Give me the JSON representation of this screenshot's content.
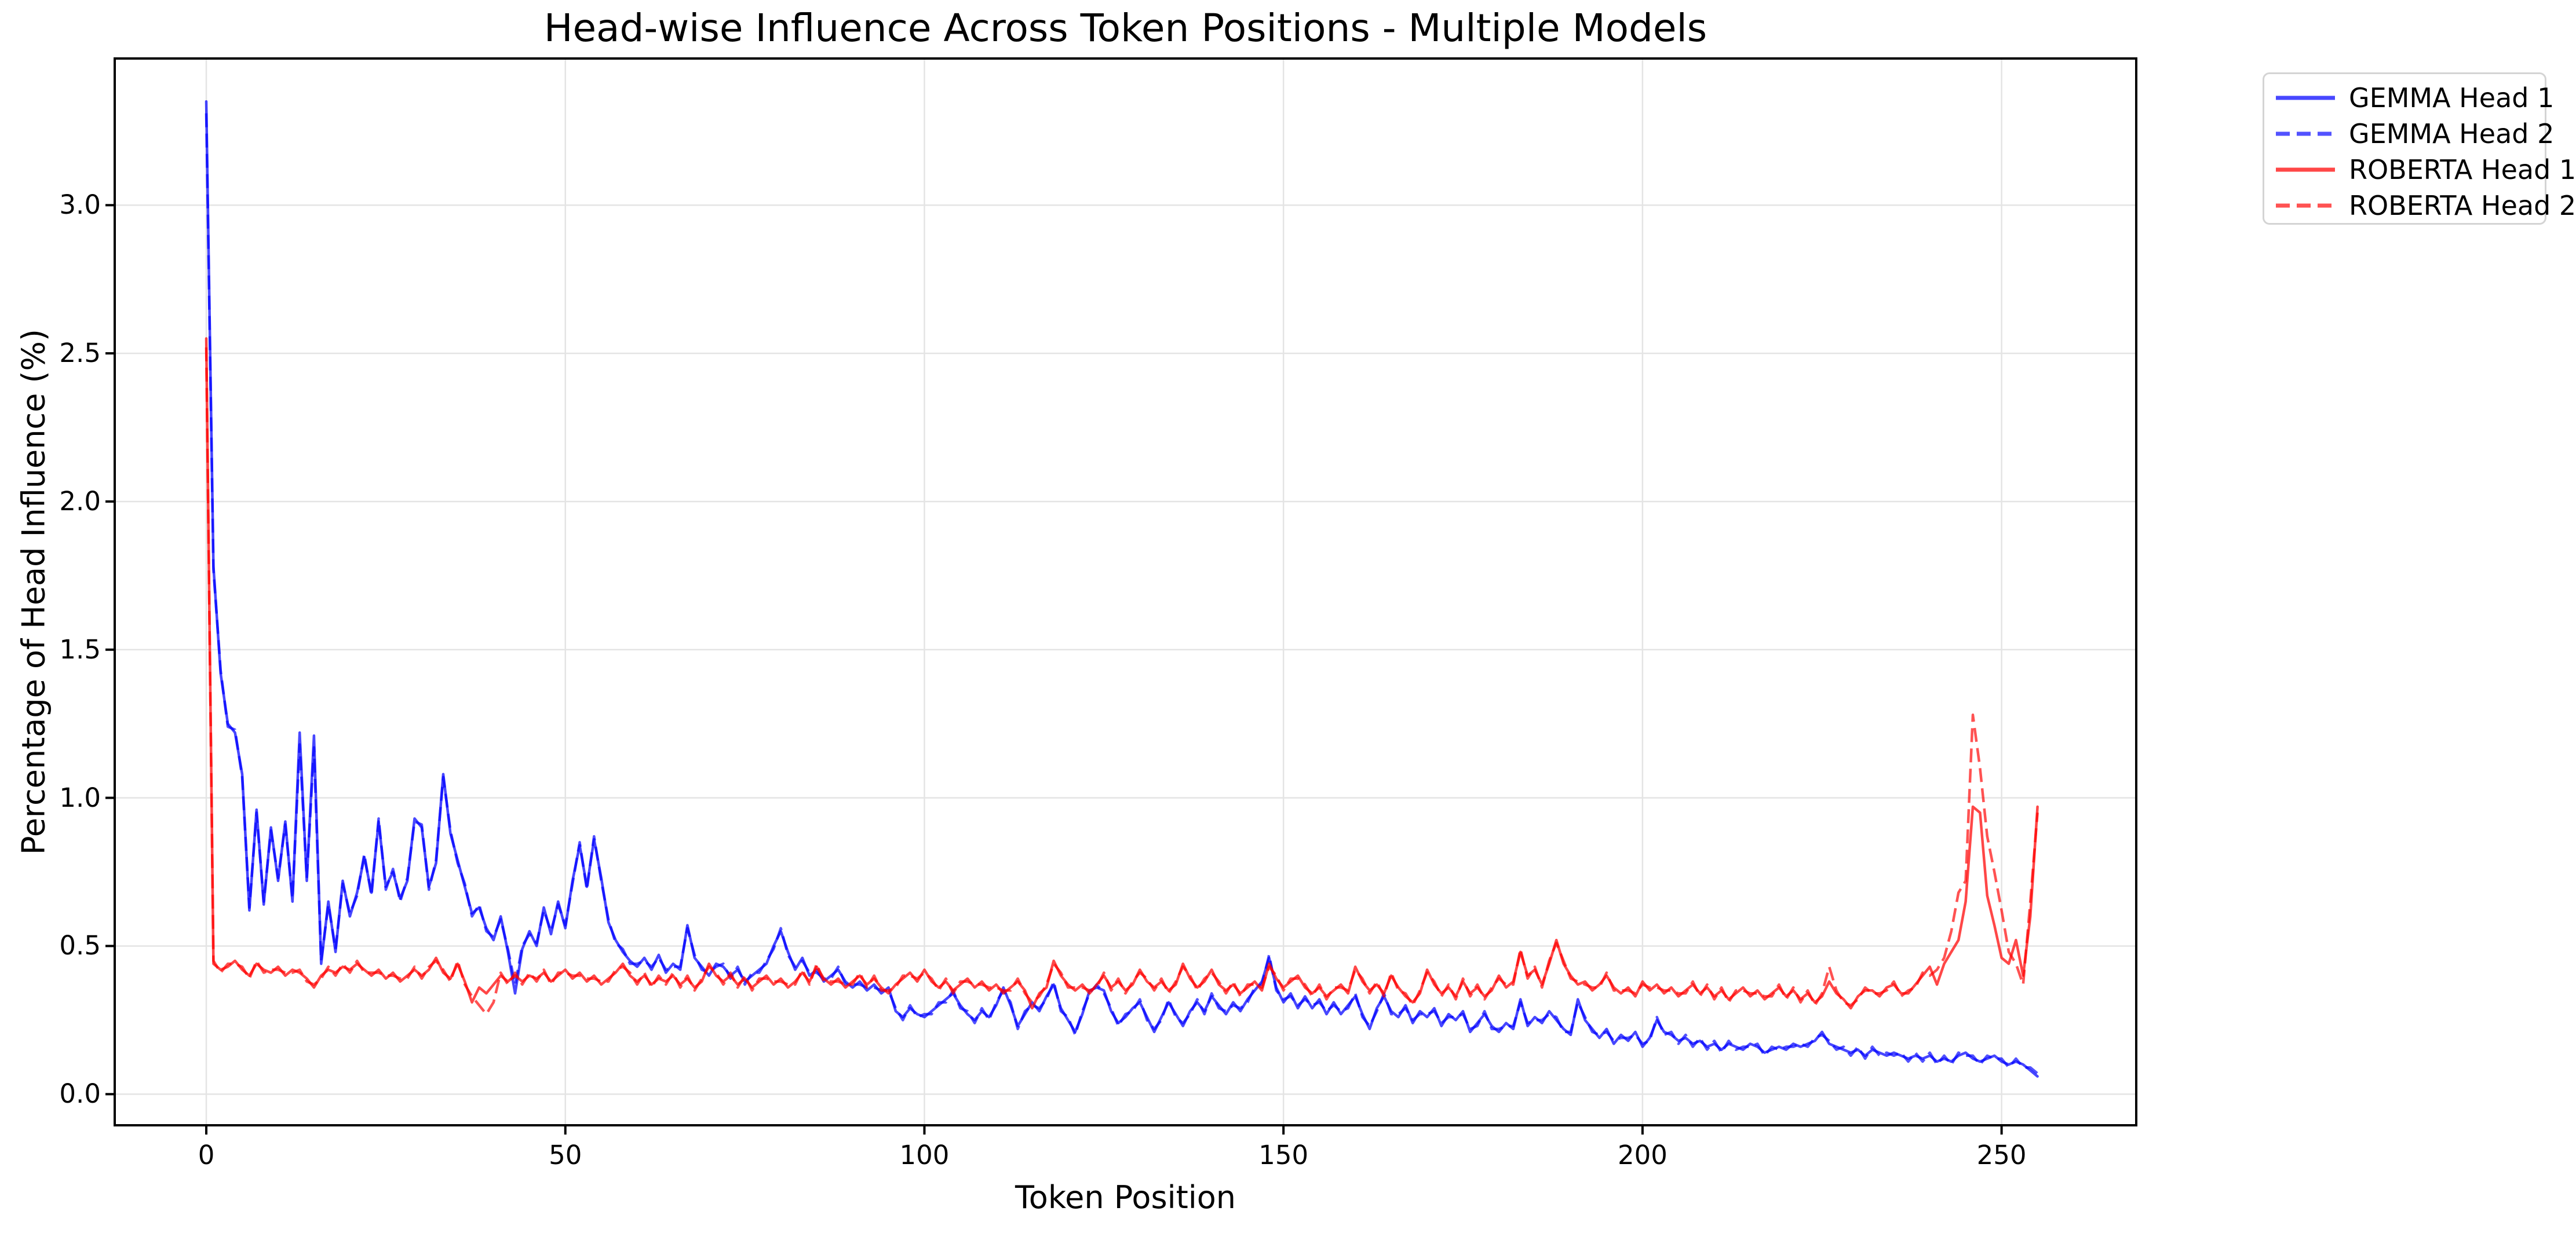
{
  "chart_data": {
    "type": "line",
    "title": "Head-wise Influence Across Token Positions - Multiple Models",
    "xlabel": "Token Position",
    "ylabel": "Percentage of Head Influence (%)",
    "xlim": [
      -12.75,
      268.75
    ],
    "ylim": [
      -0.105,
      3.495
    ],
    "x_ticks": [
      0,
      50,
      100,
      150,
      200,
      250
    ],
    "y_ticks": [
      0.0,
      0.5,
      1.0,
      1.5,
      2.0,
      2.5,
      3.0
    ],
    "grid": true,
    "legend_position": "upper right, outside plot",
    "x_start": 0,
    "x_step": 1,
    "series": [
      {
        "name": "GEMMA Head 1",
        "color": "#0000ff",
        "style": "solid",
        "values": [
          3.35,
          1.78,
          1.42,
          1.25,
          1.22,
          1.08,
          0.62,
          0.96,
          0.64,
          0.9,
          0.72,
          0.92,
          0.65,
          1.22,
          0.72,
          1.21,
          0.44,
          0.65,
          0.48,
          0.72,
          0.6,
          0.68,
          0.8,
          0.68,
          0.92,
          0.7,
          0.75,
          0.66,
          0.72,
          0.93,
          0.9,
          0.7,
          0.78,
          1.08,
          0.88,
          0.79,
          0.7,
          0.61,
          0.63,
          0.56,
          0.52,
          0.6,
          0.48,
          0.34,
          0.49,
          0.55,
          0.5,
          0.63,
          0.54,
          0.65,
          0.56,
          0.72,
          0.84,
          0.7,
          0.86,
          0.73,
          0.58,
          0.52,
          0.48,
          0.45,
          0.43,
          0.46,
          0.42,
          0.47,
          0.41,
          0.44,
          0.42,
          0.57,
          0.46,
          0.43,
          0.4,
          0.44,
          0.43,
          0.4,
          0.42,
          0.38,
          0.4,
          0.42,
          0.44,
          0.5,
          0.55,
          0.48,
          0.42,
          0.46,
          0.4,
          0.42,
          0.38,
          0.4,
          0.42,
          0.38,
          0.36,
          0.38,
          0.35,
          0.37,
          0.34,
          0.36,
          0.28,
          0.26,
          0.29,
          0.27,
          0.26,
          0.28,
          0.3,
          0.32,
          0.34,
          0.3,
          0.27,
          0.25,
          0.28,
          0.26,
          0.3,
          0.36,
          0.3,
          0.23,
          0.27,
          0.31,
          0.28,
          0.33,
          0.37,
          0.29,
          0.25,
          0.21,
          0.27,
          0.35,
          0.36,
          0.35,
          0.28,
          0.24,
          0.26,
          0.29,
          0.31,
          0.26,
          0.21,
          0.26,
          0.31,
          0.27,
          0.23,
          0.28,
          0.31,
          0.28,
          0.33,
          0.3,
          0.27,
          0.31,
          0.28,
          0.32,
          0.35,
          0.38,
          0.46,
          0.36,
          0.31,
          0.34,
          0.29,
          0.33,
          0.29,
          0.32,
          0.27,
          0.31,
          0.27,
          0.3,
          0.33,
          0.27,
          0.22,
          0.29,
          0.33,
          0.28,
          0.26,
          0.3,
          0.24,
          0.28,
          0.26,
          0.29,
          0.23,
          0.27,
          0.25,
          0.28,
          0.21,
          0.24,
          0.27,
          0.23,
          0.21,
          0.24,
          0.22,
          0.32,
          0.23,
          0.26,
          0.24,
          0.28,
          0.25,
          0.22,
          0.2,
          0.32,
          0.25,
          0.22,
          0.19,
          0.22,
          0.17,
          0.2,
          0.18,
          0.21,
          0.16,
          0.19,
          0.25,
          0.21,
          0.2,
          0.18,
          0.19,
          0.17,
          0.18,
          0.16,
          0.17,
          0.15,
          0.17,
          0.16,
          0.15,
          0.17,
          0.16,
          0.14,
          0.15,
          0.16,
          0.15,
          0.17,
          0.16,
          0.17,
          0.18,
          0.21,
          0.17,
          0.16,
          0.15,
          0.14,
          0.15,
          0.13,
          0.15,
          0.14,
          0.13,
          0.14,
          0.13,
          0.12,
          0.13,
          0.12,
          0.13,
          0.11,
          0.12,
          0.11,
          0.13,
          0.14,
          0.12,
          0.11,
          0.12,
          0.13,
          0.11,
          0.1,
          0.11,
          0.1,
          0.08,
          0.06
        ]
      },
      {
        "name": "GEMMA Head 2",
        "color": "#0000ff",
        "style": "dashed",
        "values": [
          3.31,
          1.77,
          1.43,
          1.24,
          1.23,
          1.07,
          0.63,
          0.95,
          0.65,
          0.89,
          0.73,
          0.91,
          0.66,
          1.18,
          0.73,
          1.17,
          0.45,
          0.64,
          0.49,
          0.71,
          0.61,
          0.67,
          0.81,
          0.67,
          0.93,
          0.69,
          0.76,
          0.65,
          0.73,
          0.92,
          0.91,
          0.69,
          0.79,
          1.07,
          0.89,
          0.78,
          0.71,
          0.6,
          0.64,
          0.55,
          0.53,
          0.59,
          0.49,
          0.37,
          0.5,
          0.54,
          0.51,
          0.62,
          0.55,
          0.64,
          0.57,
          0.71,
          0.85,
          0.69,
          0.87,
          0.72,
          0.59,
          0.51,
          0.49,
          0.44,
          0.44,
          0.45,
          0.43,
          0.46,
          0.42,
          0.43,
          0.43,
          0.56,
          0.47,
          0.42,
          0.41,
          0.43,
          0.44,
          0.39,
          0.43,
          0.37,
          0.41,
          0.41,
          0.45,
          0.49,
          0.56,
          0.47,
          0.43,
          0.45,
          0.41,
          0.41,
          0.39,
          0.39,
          0.43,
          0.37,
          0.37,
          0.37,
          0.36,
          0.36,
          0.35,
          0.35,
          0.29,
          0.25,
          0.3,
          0.26,
          0.27,
          0.27,
          0.31,
          0.31,
          0.35,
          0.29,
          0.28,
          0.24,
          0.29,
          0.25,
          0.31,
          0.35,
          0.31,
          0.22,
          0.28,
          0.3,
          0.29,
          0.32,
          0.38,
          0.28,
          0.26,
          0.2,
          0.28,
          0.34,
          0.37,
          0.34,
          0.29,
          0.23,
          0.27,
          0.28,
          0.32,
          0.25,
          0.22,
          0.25,
          0.32,
          0.26,
          0.24,
          0.27,
          0.32,
          0.27,
          0.34,
          0.29,
          0.28,
          0.3,
          0.29,
          0.31,
          0.36,
          0.37,
          0.47,
          0.35,
          0.32,
          0.33,
          0.3,
          0.32,
          0.3,
          0.31,
          0.28,
          0.3,
          0.28,
          0.29,
          0.34,
          0.26,
          0.23,
          0.28,
          0.34,
          0.27,
          0.27,
          0.29,
          0.25,
          0.27,
          0.27,
          0.28,
          0.24,
          0.26,
          0.26,
          0.27,
          0.22,
          0.23,
          0.28,
          0.22,
          0.22,
          0.23,
          0.23,
          0.31,
          0.24,
          0.25,
          0.25,
          0.27,
          0.26,
          0.21,
          0.21,
          0.31,
          0.26,
          0.21,
          0.2,
          0.21,
          0.18,
          0.19,
          0.19,
          0.2,
          0.17,
          0.18,
          0.26,
          0.2,
          0.21,
          0.17,
          0.2,
          0.16,
          0.19,
          0.15,
          0.18,
          0.14,
          0.18,
          0.15,
          0.16,
          0.16,
          0.17,
          0.13,
          0.16,
          0.15,
          0.16,
          0.16,
          0.17,
          0.16,
          0.19,
          0.2,
          0.18,
          0.15,
          0.16,
          0.13,
          0.16,
          0.12,
          0.16,
          0.13,
          0.14,
          0.13,
          0.14,
          0.11,
          0.14,
          0.11,
          0.14,
          0.1,
          0.13,
          0.1,
          0.14,
          0.13,
          0.13,
          0.1,
          0.13,
          0.12,
          0.12,
          0.09,
          0.12,
          0.09,
          0.09,
          0.07
        ]
      },
      {
        "name": "ROBERTA Head 1",
        "color": "#ff0000",
        "style": "solid",
        "values": [
          2.55,
          0.44,
          0.42,
          0.43,
          0.45,
          0.42,
          0.4,
          0.44,
          0.42,
          0.41,
          0.43,
          0.4,
          0.42,
          0.41,
          0.39,
          0.36,
          0.4,
          0.42,
          0.41,
          0.43,
          0.42,
          0.44,
          0.42,
          0.4,
          0.42,
          0.39,
          0.41,
          0.38,
          0.4,
          0.42,
          0.4,
          0.42,
          0.46,
          0.41,
          0.39,
          0.44,
          0.38,
          0.31,
          0.36,
          0.34,
          0.37,
          0.4,
          0.38,
          0.4,
          0.38,
          0.4,
          0.39,
          0.41,
          0.38,
          0.4,
          0.42,
          0.39,
          0.41,
          0.38,
          0.4,
          0.37,
          0.39,
          0.41,
          0.44,
          0.4,
          0.38,
          0.4,
          0.37,
          0.39,
          0.38,
          0.4,
          0.37,
          0.39,
          0.36,
          0.38,
          0.44,
          0.4,
          0.38,
          0.4,
          0.37,
          0.39,
          0.36,
          0.38,
          0.4,
          0.37,
          0.39,
          0.36,
          0.38,
          0.41,
          0.38,
          0.43,
          0.39,
          0.37,
          0.39,
          0.36,
          0.38,
          0.4,
          0.37,
          0.39,
          0.36,
          0.34,
          0.37,
          0.39,
          0.41,
          0.38,
          0.42,
          0.38,
          0.36,
          0.38,
          0.35,
          0.37,
          0.39,
          0.36,
          0.38,
          0.35,
          0.37,
          0.34,
          0.36,
          0.38,
          0.35,
          0.29,
          0.34,
          0.36,
          0.45,
          0.4,
          0.37,
          0.35,
          0.37,
          0.34,
          0.37,
          0.4,
          0.36,
          0.38,
          0.35,
          0.37,
          0.42,
          0.38,
          0.36,
          0.38,
          0.35,
          0.37,
          0.44,
          0.39,
          0.36,
          0.38,
          0.42,
          0.37,
          0.35,
          0.37,
          0.34,
          0.36,
          0.38,
          0.35,
          0.44,
          0.39,
          0.36,
          0.38,
          0.4,
          0.36,
          0.34,
          0.36,
          0.33,
          0.35,
          0.37,
          0.34,
          0.43,
          0.38,
          0.35,
          0.37,
          0.34,
          0.4,
          0.36,
          0.33,
          0.31,
          0.34,
          0.42,
          0.37,
          0.34,
          0.36,
          0.33,
          0.38,
          0.34,
          0.36,
          0.33,
          0.35,
          0.4,
          0.36,
          0.38,
          0.48,
          0.4,
          0.42,
          0.37,
          0.44,
          0.52,
          0.44,
          0.4,
          0.37,
          0.38,
          0.35,
          0.37,
          0.4,
          0.36,
          0.34,
          0.36,
          0.33,
          0.38,
          0.35,
          0.37,
          0.34,
          0.36,
          0.33,
          0.35,
          0.37,
          0.34,
          0.36,
          0.33,
          0.35,
          0.32,
          0.34,
          0.36,
          0.33,
          0.35,
          0.32,
          0.34,
          0.36,
          0.33,
          0.35,
          0.32,
          0.34,
          0.31,
          0.33,
          0.38,
          0.34,
          0.32,
          0.29,
          0.33,
          0.35,
          0.35,
          0.33,
          0.36,
          0.37,
          0.34,
          0.34,
          0.37,
          0.4,
          0.43,
          0.37,
          0.44,
          0.48,
          0.52,
          0.65,
          0.97,
          0.95,
          0.67,
          0.57,
          0.46,
          0.44,
          0.52,
          0.4,
          0.6,
          0.97
        ]
      },
      {
        "name": "ROBERTA Head 2",
        "color": "#ff0000",
        "style": "dashed",
        "values": [
          2.52,
          0.45,
          0.41,
          0.44,
          0.44,
          0.43,
          0.39,
          0.45,
          0.41,
          0.42,
          0.42,
          0.41,
          0.41,
          0.42,
          0.38,
          0.37,
          0.39,
          0.43,
          0.4,
          0.44,
          0.41,
          0.45,
          0.41,
          0.41,
          0.41,
          0.4,
          0.4,
          0.39,
          0.39,
          0.43,
          0.39,
          0.43,
          0.45,
          0.42,
          0.38,
          0.45,
          0.37,
          0.33,
          0.3,
          0.27,
          0.31,
          0.41,
          0.37,
          0.41,
          0.37,
          0.41,
          0.38,
          0.42,
          0.37,
          0.41,
          0.41,
          0.4,
          0.4,
          0.39,
          0.39,
          0.38,
          0.38,
          0.42,
          0.43,
          0.41,
          0.37,
          0.41,
          0.36,
          0.4,
          0.37,
          0.41,
          0.36,
          0.4,
          0.35,
          0.39,
          0.43,
          0.41,
          0.37,
          0.41,
          0.36,
          0.4,
          0.35,
          0.39,
          0.39,
          0.38,
          0.38,
          0.37,
          0.37,
          0.42,
          0.37,
          0.44,
          0.38,
          0.38,
          0.38,
          0.37,
          0.37,
          0.41,
          0.36,
          0.4,
          0.35,
          0.35,
          0.36,
          0.4,
          0.4,
          0.39,
          0.41,
          0.39,
          0.35,
          0.39,
          0.34,
          0.38,
          0.38,
          0.37,
          0.37,
          0.36,
          0.36,
          0.35,
          0.35,
          0.39,
          0.34,
          0.31,
          0.33,
          0.37,
          0.44,
          0.41,
          0.36,
          0.36,
          0.36,
          0.35,
          0.36,
          0.41,
          0.35,
          0.39,
          0.34,
          0.38,
          0.41,
          0.39,
          0.35,
          0.39,
          0.34,
          0.38,
          0.43,
          0.4,
          0.35,
          0.39,
          0.41,
          0.38,
          0.34,
          0.38,
          0.33,
          0.37,
          0.37,
          0.36,
          0.43,
          0.4,
          0.35,
          0.39,
          0.39,
          0.37,
          0.33,
          0.37,
          0.32,
          0.36,
          0.36,
          0.35,
          0.42,
          0.39,
          0.34,
          0.38,
          0.33,
          0.41,
          0.35,
          0.34,
          0.3,
          0.35,
          0.41,
          0.38,
          0.33,
          0.37,
          0.32,
          0.39,
          0.33,
          0.37,
          0.32,
          0.36,
          0.39,
          0.37,
          0.37,
          0.49,
          0.39,
          0.43,
          0.36,
          0.45,
          0.51,
          0.45,
          0.39,
          0.38,
          0.37,
          0.36,
          0.36,
          0.41,
          0.35,
          0.35,
          0.35,
          0.34,
          0.37,
          0.36,
          0.36,
          0.35,
          0.35,
          0.34,
          0.34,
          0.38,
          0.33,
          0.37,
          0.32,
          0.36,
          0.31,
          0.35,
          0.35,
          0.34,
          0.34,
          0.33,
          0.33,
          0.37,
          0.32,
          0.36,
          0.31,
          0.35,
          0.3,
          0.34,
          0.43,
          0.35,
          0.31,
          0.3,
          0.32,
          0.36,
          0.34,
          0.34,
          0.35,
          0.38,
          0.33,
          0.35,
          0.36,
          0.41,
          0.4,
          0.42,
          0.46,
          0.55,
          0.68,
          0.72,
          1.28,
          1.1,
          0.87,
          0.75,
          0.62,
          0.48,
          0.44,
          0.37,
          0.65,
          0.95
        ]
      }
    ]
  },
  "legend": {
    "items": [
      {
        "label": "GEMMA Head 1"
      },
      {
        "label": "GEMMA Head 2"
      },
      {
        "label": "ROBERTA Head 1"
      },
      {
        "label": "ROBERTA Head 2"
      }
    ]
  },
  "style_colors": {
    "gemma_line": "#0000ff",
    "roberta_line": "#ff0000",
    "grid": "#e4e4e4",
    "spine": "#000000",
    "background": "#ffffff",
    "legend_border": "#d4d4d4"
  }
}
